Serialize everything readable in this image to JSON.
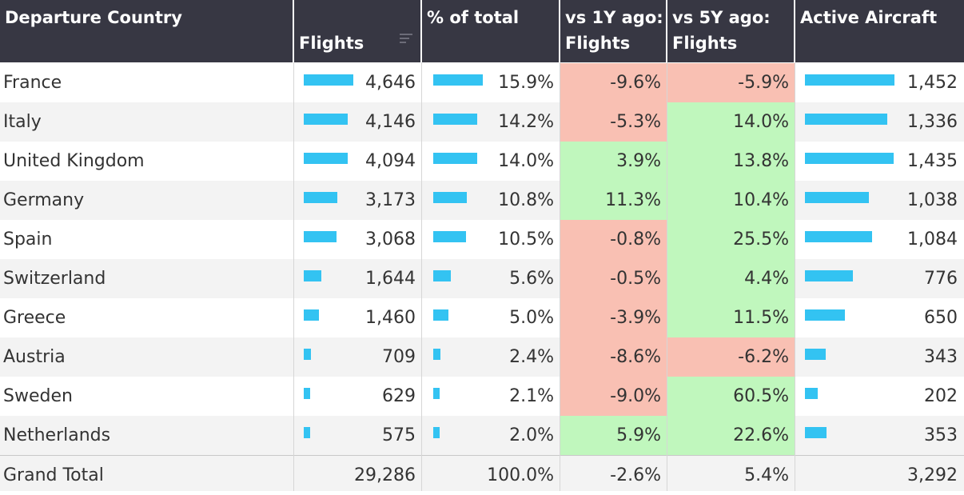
{
  "colors": {
    "header_bg": "#373743",
    "bar": "#33c3f2",
    "negative": "#f9c0b3",
    "positive": "#c0f7bd",
    "alt_row": "#f3f3f3"
  },
  "header": {
    "country": "Departure Country",
    "flights": "Flights",
    "pct_total": "% of total",
    "vs1y": "vs 1Y ago:\nFlights",
    "vs5y": "vs 5Y ago:\nFlights",
    "aircraft": "Active Aircraft",
    "sort_icon": "sort-descending-icon"
  },
  "rows": [
    {
      "country": "France",
      "flights": "4,646",
      "flights_value": 4646,
      "pct": "15.9%",
      "pct_value": 15.9,
      "vs1y": "-9.6%",
      "vs1y_value": -9.6,
      "vs5y": "-5.9%",
      "vs5y_value": -5.9,
      "aircraft": "1,452",
      "aircraft_value": 1452
    },
    {
      "country": "Italy",
      "flights": "4,146",
      "flights_value": 4146,
      "pct": "14.2%",
      "pct_value": 14.2,
      "vs1y": "-5.3%",
      "vs1y_value": -5.3,
      "vs5y": "14.0%",
      "vs5y_value": 14.0,
      "aircraft": "1,336",
      "aircraft_value": 1336
    },
    {
      "country": "United Kingdom",
      "flights": "4,094",
      "flights_value": 4094,
      "pct": "14.0%",
      "pct_value": 14.0,
      "vs1y": "3.9%",
      "vs1y_value": 3.9,
      "vs5y": "13.8%",
      "vs5y_value": 13.8,
      "aircraft": "1,435",
      "aircraft_value": 1435
    },
    {
      "country": "Germany",
      "flights": "3,173",
      "flights_value": 3173,
      "pct": "10.8%",
      "pct_value": 10.8,
      "vs1y": "11.3%",
      "vs1y_value": 11.3,
      "vs5y": "10.4%",
      "vs5y_value": 10.4,
      "aircraft": "1,038",
      "aircraft_value": 1038
    },
    {
      "country": "Spain",
      "flights": "3,068",
      "flights_value": 3068,
      "pct": "10.5%",
      "pct_value": 10.5,
      "vs1y": "-0.8%",
      "vs1y_value": -0.8,
      "vs5y": "25.5%",
      "vs5y_value": 25.5,
      "aircraft": "1,084",
      "aircraft_value": 1084
    },
    {
      "country": "Switzerland",
      "flights": "1,644",
      "flights_value": 1644,
      "pct": "5.6%",
      "pct_value": 5.6,
      "vs1y": "-0.5%",
      "vs1y_value": -0.5,
      "vs5y": "4.4%",
      "vs5y_value": 4.4,
      "aircraft": "776",
      "aircraft_value": 776
    },
    {
      "country": "Greece",
      "flights": "1,460",
      "flights_value": 1460,
      "pct": "5.0%",
      "pct_value": 5.0,
      "vs1y": "-3.9%",
      "vs1y_value": -3.9,
      "vs5y": "11.5%",
      "vs5y_value": 11.5,
      "aircraft": "650",
      "aircraft_value": 650
    },
    {
      "country": "Austria",
      "flights": "709",
      "flights_value": 709,
      "pct": "2.4%",
      "pct_value": 2.4,
      "vs1y": "-8.6%",
      "vs1y_value": -8.6,
      "vs5y": "-6.2%",
      "vs5y_value": -6.2,
      "aircraft": "343",
      "aircraft_value": 343
    },
    {
      "country": "Sweden",
      "flights": "629",
      "flights_value": 629,
      "pct": "2.1%",
      "pct_value": 2.1,
      "vs1y": "-9.0%",
      "vs1y_value": -9.0,
      "vs5y": "60.5%",
      "vs5y_value": 60.5,
      "aircraft": "202",
      "aircraft_value": 202
    },
    {
      "country": "Netherlands",
      "flights": "575",
      "flights_value": 575,
      "pct": "2.0%",
      "pct_value": 2.0,
      "vs1y": "5.9%",
      "vs1y_value": 5.9,
      "vs5y": "22.6%",
      "vs5y_value": 22.6,
      "aircraft": "353",
      "aircraft_value": 353
    }
  ],
  "total": {
    "country": "Grand Total",
    "flights": "29,286",
    "pct": "100.0%",
    "vs1y": "-2.6%",
    "vs5y": "5.4%",
    "aircraft": "3,292"
  }
}
